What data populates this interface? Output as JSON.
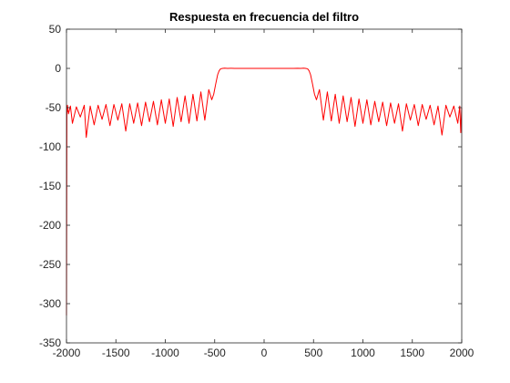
{
  "chart_data": {
    "type": "line",
    "title": "Respuesta en frecuencia del filtro",
    "xlabel": "",
    "ylabel": "",
    "xlim": [
      -2000,
      2000
    ],
    "ylim": [
      -350,
      50
    ],
    "xticks": [
      -2000,
      -1500,
      -1000,
      -500,
      0,
      500,
      1000,
      1500,
      2000
    ],
    "xtick_labels": [
      "-2000",
      "-1500",
      "-1000",
      "-500",
      "0",
      "500",
      "1000",
      "1500",
      "2000"
    ],
    "yticks": [
      50,
      0,
      -50,
      -100,
      -150,
      -200,
      -250,
      -300,
      -350
    ],
    "ytick_labels": [
      "50",
      "0",
      "-50",
      "-100",
      "-150",
      "-200",
      "-250",
      "-300",
      "-350"
    ],
    "grid": false,
    "legend": "none",
    "series": [
      {
        "color": "#ff0000",
        "description": "lowpass filter magnitude response in dB; passband about 0 dB between roughly -400 and 400, transition edges near ±450, stopband ripple between about -45 and -90 dB, deep notch near -315 at the left edge",
        "x": [
          -2000,
          -1996,
          -1994,
          -1992,
          -1990,
          -1980,
          -1960,
          -1940,
          -1900,
          -1860,
          -1820,
          -1800,
          -1760,
          -1720,
          -1680,
          -1640,
          -1600,
          -1560,
          -1520,
          -1480,
          -1440,
          -1400,
          -1360,
          -1320,
          -1280,
          -1240,
          -1200,
          -1160,
          -1120,
          -1080,
          -1040,
          -1000,
          -960,
          -920,
          -880,
          -840,
          -800,
          -760,
          -720,
          -680,
          -640,
          -600,
          -560,
          -530,
          -510,
          -490,
          -470,
          -455,
          -440,
          -420,
          -400,
          -370,
          -340,
          -300,
          0,
          300,
          340,
          370,
          400,
          420,
          440,
          455,
          470,
          490,
          510,
          530,
          560,
          600,
          640,
          680,
          720,
          760,
          800,
          840,
          880,
          920,
          960,
          1000,
          1040,
          1080,
          1120,
          1160,
          1200,
          1240,
          1280,
          1320,
          1360,
          1400,
          1440,
          1480,
          1520,
          1560,
          1600,
          1640,
          1680,
          1720,
          1760,
          1800,
          1840,
          1880,
          1920,
          1960,
          1980,
          1990,
          2000
        ],
        "y": [
          -315,
          -60,
          -48,
          -55,
          -47,
          -58,
          -48,
          -70,
          -49,
          -62,
          -47,
          -88,
          -48,
          -72,
          -47,
          -65,
          -46,
          -73,
          -46,
          -66,
          -45,
          -80,
          -45,
          -70,
          -44,
          -73,
          -43,
          -68,
          -42,
          -72,
          -40,
          -70,
          -39,
          -74,
          -37,
          -68,
          -35,
          -70,
          -33,
          -67,
          -30,
          -66,
          -27,
          -40,
          -33,
          -20,
          -8,
          -3,
          -0.5,
          0,
          0.3,
          0,
          0.2,
          0,
          0,
          0,
          0.2,
          0,
          0.3,
          0,
          -0.5,
          -3,
          -8,
          -20,
          -33,
          -40,
          -27,
          -66,
          -30,
          -67,
          -33,
          -70,
          -35,
          -68,
          -37,
          -74,
          -39,
          -70,
          -40,
          -72,
          -42,
          -68,
          -43,
          -73,
          -44,
          -70,
          -45,
          -80,
          -45,
          -66,
          -46,
          -73,
          -46,
          -65,
          -47,
          -72,
          -48,
          -85,
          -47,
          -62,
          -48,
          -70,
          -48,
          -82,
          -50
        ]
      }
    ]
  }
}
